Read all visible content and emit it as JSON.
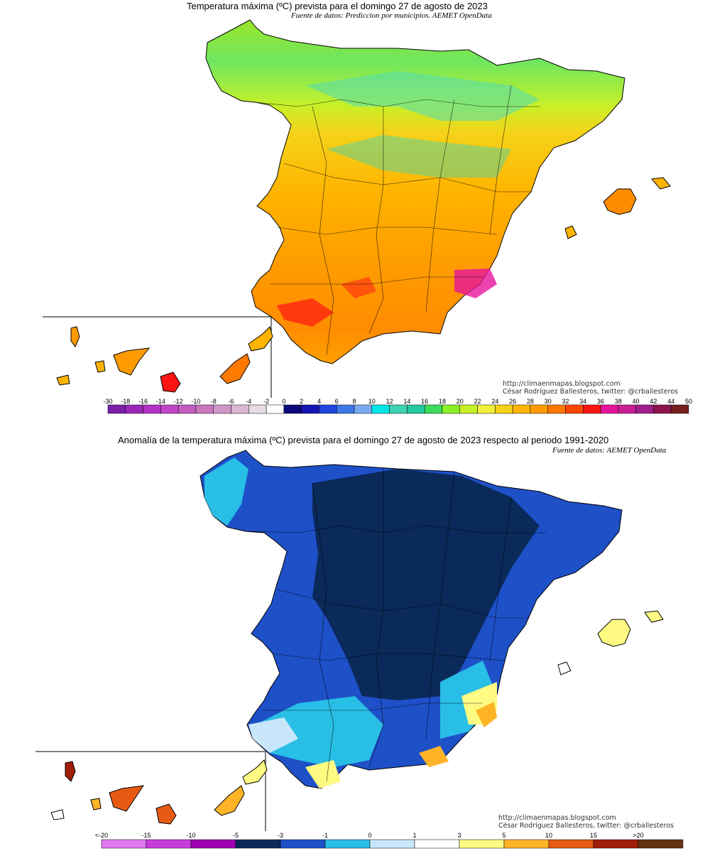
{
  "top": {
    "title": "Temperatura máxima (ºC) prevista para el domingo 27 de agosto de 2023",
    "subtitle": "Fuente de datos: Prediccion por municipios. AEMET OpenData",
    "credit_url": "http://climaenmapas.blogspot.com",
    "credit_author": "César Rodríguez Ballesteros, twitter: @crballesteros",
    "scale": {
      "labels": [
        "-30",
        "-18",
        "-16",
        "-14",
        "-12",
        "-10",
        "-8",
        "-6",
        "-4",
        "-2",
        "0",
        "2",
        "4",
        "6",
        "8",
        "10",
        "12",
        "14",
        "16",
        "18",
        "20",
        "22",
        "24",
        "26",
        "28",
        "30",
        "32",
        "34",
        "36",
        "38",
        "40",
        "42",
        "44",
        "50"
      ],
      "colors": [
        "#7a1fa8",
        "#9b27b8",
        "#b532c8",
        "#c245c9",
        "#c25dc0",
        "#c877bd",
        "#cf96c6",
        "#d9b8d2",
        "#e6dce4",
        "#ffffff",
        "#0a0a7a",
        "#1414b4",
        "#1e46dc",
        "#3c78e6",
        "#78aaf0",
        "#00e6e6",
        "#3cd2b4",
        "#24c8a0",
        "#3cdc5a",
        "#8cf028",
        "#c8f028",
        "#f0f03c",
        "#f5d219",
        "#ffb400",
        "#ff9b00",
        "#ff7800",
        "#ff4600",
        "#ff1414",
        "#e6149b",
        "#c81e96",
        "#a01e8c",
        "#8c144b",
        "#781e1e"
      ]
    }
  },
  "bottom": {
    "title": "Anomalía de la temperatura máxima (ºC) prevista para el domingo 27 de agosto de 2023 respecto al periodo 1991-2020",
    "subtitle": "Fuente de datos: AEMET OpenData",
    "credit_url": "http://climaenmapas.blogspot.com",
    "credit_author": "César Rodríguez Ballesteros, twitter: @crballesteros",
    "scale": {
      "labels": [
        "<-20",
        "-15",
        "-10",
        "-5",
        "-3",
        "-1",
        "0",
        "1",
        "3",
        "5",
        "10",
        "15",
        ">20"
      ],
      "colors": [
        "#e178f0",
        "#c83cdc",
        "#a000b4",
        "#0a2a5a",
        "#1e50c8",
        "#28bee6",
        "#c8e6fa",
        "#ffffff",
        "#fffa82",
        "#ffb428",
        "#e65a14",
        "#a01e0a",
        "#643214"
      ]
    }
  }
}
